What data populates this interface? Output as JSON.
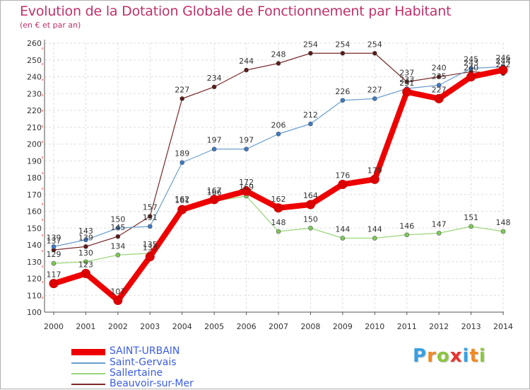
{
  "chart_data": {
    "type": "line",
    "title": "Evolution de la Dotation Globale de Fonctionnement par Habitant",
    "subtitle": "(en € et par an)",
    "xlabel": "",
    "ylabel": "",
    "ylim": [
      100,
      260
    ],
    "y_ticks": [
      "100",
      "110",
      "120",
      "130",
      "140",
      "150",
      "160",
      "170",
      "180",
      "190",
      "200",
      "210",
      "220",
      "230",
      "240",
      "250",
      "260"
    ],
    "grid": true,
    "legend_position": "bottom-left",
    "x": [
      "2000",
      "2001",
      "2002",
      "2003",
      "2004",
      "2005",
      "2006",
      "2007",
      "2008",
      "2009",
      "2010",
      "2011",
      "2012",
      "2013",
      "2014"
    ],
    "series": [
      {
        "name": "Beauvoir-sur-Mer",
        "color": "#7b2a2a",
        "marker": "#5a1a1a",
        "values": [
          137,
          139,
          145,
          157,
          227,
          234,
          244,
          248,
          254,
          254,
          254,
          237,
          240,
          243,
          242
        ],
        "labels": [
          "137",
          "139",
          "145",
          "157",
          "227",
          "234",
          "244",
          "248",
          "254",
          "254",
          "254",
          "237",
          "240",
          "243",
          "242"
        ]
      },
      {
        "name": "Saint-Gervais",
        "color": "#6a9ecf",
        "marker": "#3b7bc8",
        "values": [
          139,
          143,
          150,
          151,
          189,
          197,
          197,
          206,
          212,
          226,
          227,
          233,
          235,
          245,
          246
        ],
        "labels": [
          "139",
          "143",
          "150",
          "151",
          "189",
          "197",
          "197",
          "206",
          "212",
          "226",
          "227",
          "233",
          "235",
          "245",
          "246"
        ]
      },
      {
        "name": "Sallertaine",
        "color": "#99d67a",
        "marker": "#7ccc55",
        "values": [
          129,
          130,
          134,
          135,
          162,
          166,
          169,
          148,
          150,
          144,
          144,
          146,
          147,
          151,
          148
        ],
        "labels": [
          "129",
          "130",
          "134",
          "135",
          "162",
          "166",
          "169",
          "148",
          "150",
          "144",
          "144",
          "146",
          "147",
          "151",
          "148"
        ]
      },
      {
        "name": "SAINT-URBAIN",
        "color": "#ee0000",
        "marker": "#dd0000",
        "values": [
          117,
          123,
          107,
          133,
          161,
          167,
          172,
          162,
          164,
          176,
          179,
          231,
          227,
          240,
          244
        ],
        "labels": [
          "117",
          "123",
          "107",
          "133",
          "161",
          "167",
          "172",
          "162",
          "164",
          "176",
          "179",
          "231",
          "227",
          "240",
          "244"
        ]
      }
    ],
    "legend": [
      "SAINT-URBAIN",
      "Saint-Gervais",
      "Sallertaine",
      "Beauvoir-sur-Mer"
    ]
  },
  "logo": {
    "letters": [
      "P",
      "r",
      "o",
      "x",
      "i",
      "t",
      "i"
    ],
    "colors": [
      "#3aa0e0",
      "#f08a24",
      "#8cc63f",
      "#e8322d",
      "#3aa0e0",
      "#f08a24",
      "#8cc63f"
    ]
  }
}
